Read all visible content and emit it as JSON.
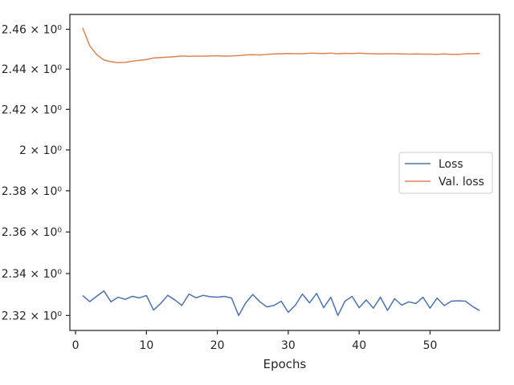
{
  "chart_data": {
    "type": "line",
    "title": "",
    "xlabel": "Epochs",
    "ylabel": "",
    "yscale": "log",
    "grid": false,
    "legend": "center-right",
    "xlim": [
      -0.8,
      59.8
    ],
    "ylim": [
      2.3129,
      2.4675
    ],
    "xticks": [
      {
        "value": 0,
        "label": "0"
      },
      {
        "value": 10,
        "label": "10"
      },
      {
        "value": 20,
        "label": "20"
      },
      {
        "value": 30,
        "label": "30"
      },
      {
        "value": 40,
        "label": "40"
      },
      {
        "value": 50,
        "label": "50"
      }
    ],
    "yticks": [
      {
        "value": 2.32,
        "label": "2.32 × 10⁰"
      },
      {
        "value": 2.34,
        "label": "2.34 × 10⁰"
      },
      {
        "value": 2.36,
        "label": "2.36 × 10⁰"
      },
      {
        "value": 2.38,
        "label": "2.38 × 10⁰"
      },
      {
        "value": 2.4,
        "label": "2 × 10⁰"
      },
      {
        "value": 2.42,
        "label": "2.42 × 10⁰"
      },
      {
        "value": 2.44,
        "label": "2.44 × 10⁰"
      },
      {
        "value": 2.46,
        "label": "2.46 × 10⁰"
      }
    ],
    "series": [
      {
        "name": "Loss",
        "color": "#4c72b0",
        "x": [
          1,
          2,
          3,
          4,
          5,
          6,
          7,
          8,
          9,
          10,
          11,
          12,
          13,
          14,
          15,
          16,
          17,
          18,
          19,
          20,
          21,
          22,
          23,
          24,
          25,
          26,
          27,
          28,
          29,
          30,
          31,
          32,
          33,
          34,
          35,
          36,
          37,
          38,
          39,
          40,
          41,
          42,
          43,
          44,
          45,
          46,
          47,
          48,
          49,
          50,
          51,
          52,
          53,
          54,
          55,
          56,
          57
        ],
        "values": [
          2.3295,
          2.3266,
          2.3292,
          2.3317,
          2.3265,
          2.3287,
          2.3277,
          2.3291,
          2.3284,
          2.3295,
          2.3226,
          2.3257,
          2.3296,
          2.3274,
          2.3248,
          2.3302,
          2.3284,
          2.3296,
          2.3289,
          2.3287,
          2.3291,
          2.3283,
          2.32,
          2.326,
          2.33,
          2.3265,
          2.3241,
          2.3248,
          2.3268,
          2.3215,
          2.3249,
          2.3302,
          2.326,
          2.3305,
          2.3237,
          2.3287,
          2.32,
          2.3268,
          2.3291,
          2.3237,
          2.3274,
          2.3235,
          2.3287,
          2.3224,
          2.328,
          2.3249,
          2.3265,
          2.3257,
          2.3287,
          2.3235,
          2.3283,
          2.3247,
          2.3268,
          2.327,
          2.3268,
          2.3243,
          2.3223
        ]
      },
      {
        "name": "Val. loss",
        "color": "#dd8452",
        "x": [
          1,
          2,
          3,
          4,
          5,
          6,
          7,
          8,
          9,
          10,
          11,
          12,
          13,
          14,
          15,
          16,
          17,
          18,
          19,
          20,
          21,
          22,
          23,
          24,
          25,
          26,
          27,
          28,
          29,
          30,
          31,
          32,
          33,
          34,
          35,
          36,
          37,
          38,
          39,
          40,
          41,
          42,
          43,
          44,
          45,
          46,
          47,
          48,
          49,
          50,
          51,
          52,
          53,
          54,
          55,
          56,
          57
        ],
        "values": [
          2.4607,
          2.4517,
          2.4472,
          2.4446,
          2.4437,
          2.4433,
          2.4434,
          2.444,
          2.4444,
          2.4448,
          2.4456,
          2.4458,
          2.446,
          2.4462,
          2.4466,
          2.4464,
          2.4465,
          2.4465,
          2.4466,
          2.4467,
          2.4465,
          2.4466,
          2.4468,
          2.4471,
          2.4472,
          2.4471,
          2.4474,
          2.4476,
          2.4477,
          2.4478,
          2.4477,
          2.4477,
          2.448,
          2.4479,
          2.4478,
          2.448,
          2.4477,
          2.4479,
          2.4478,
          2.448,
          2.4478,
          2.4477,
          2.4476,
          2.4477,
          2.4477,
          2.4476,
          2.4475,
          2.4476,
          2.4475,
          2.4475,
          2.4474,
          2.4476,
          2.4474,
          2.4474,
          2.4477,
          2.4477,
          2.4478
        ]
      }
    ]
  }
}
